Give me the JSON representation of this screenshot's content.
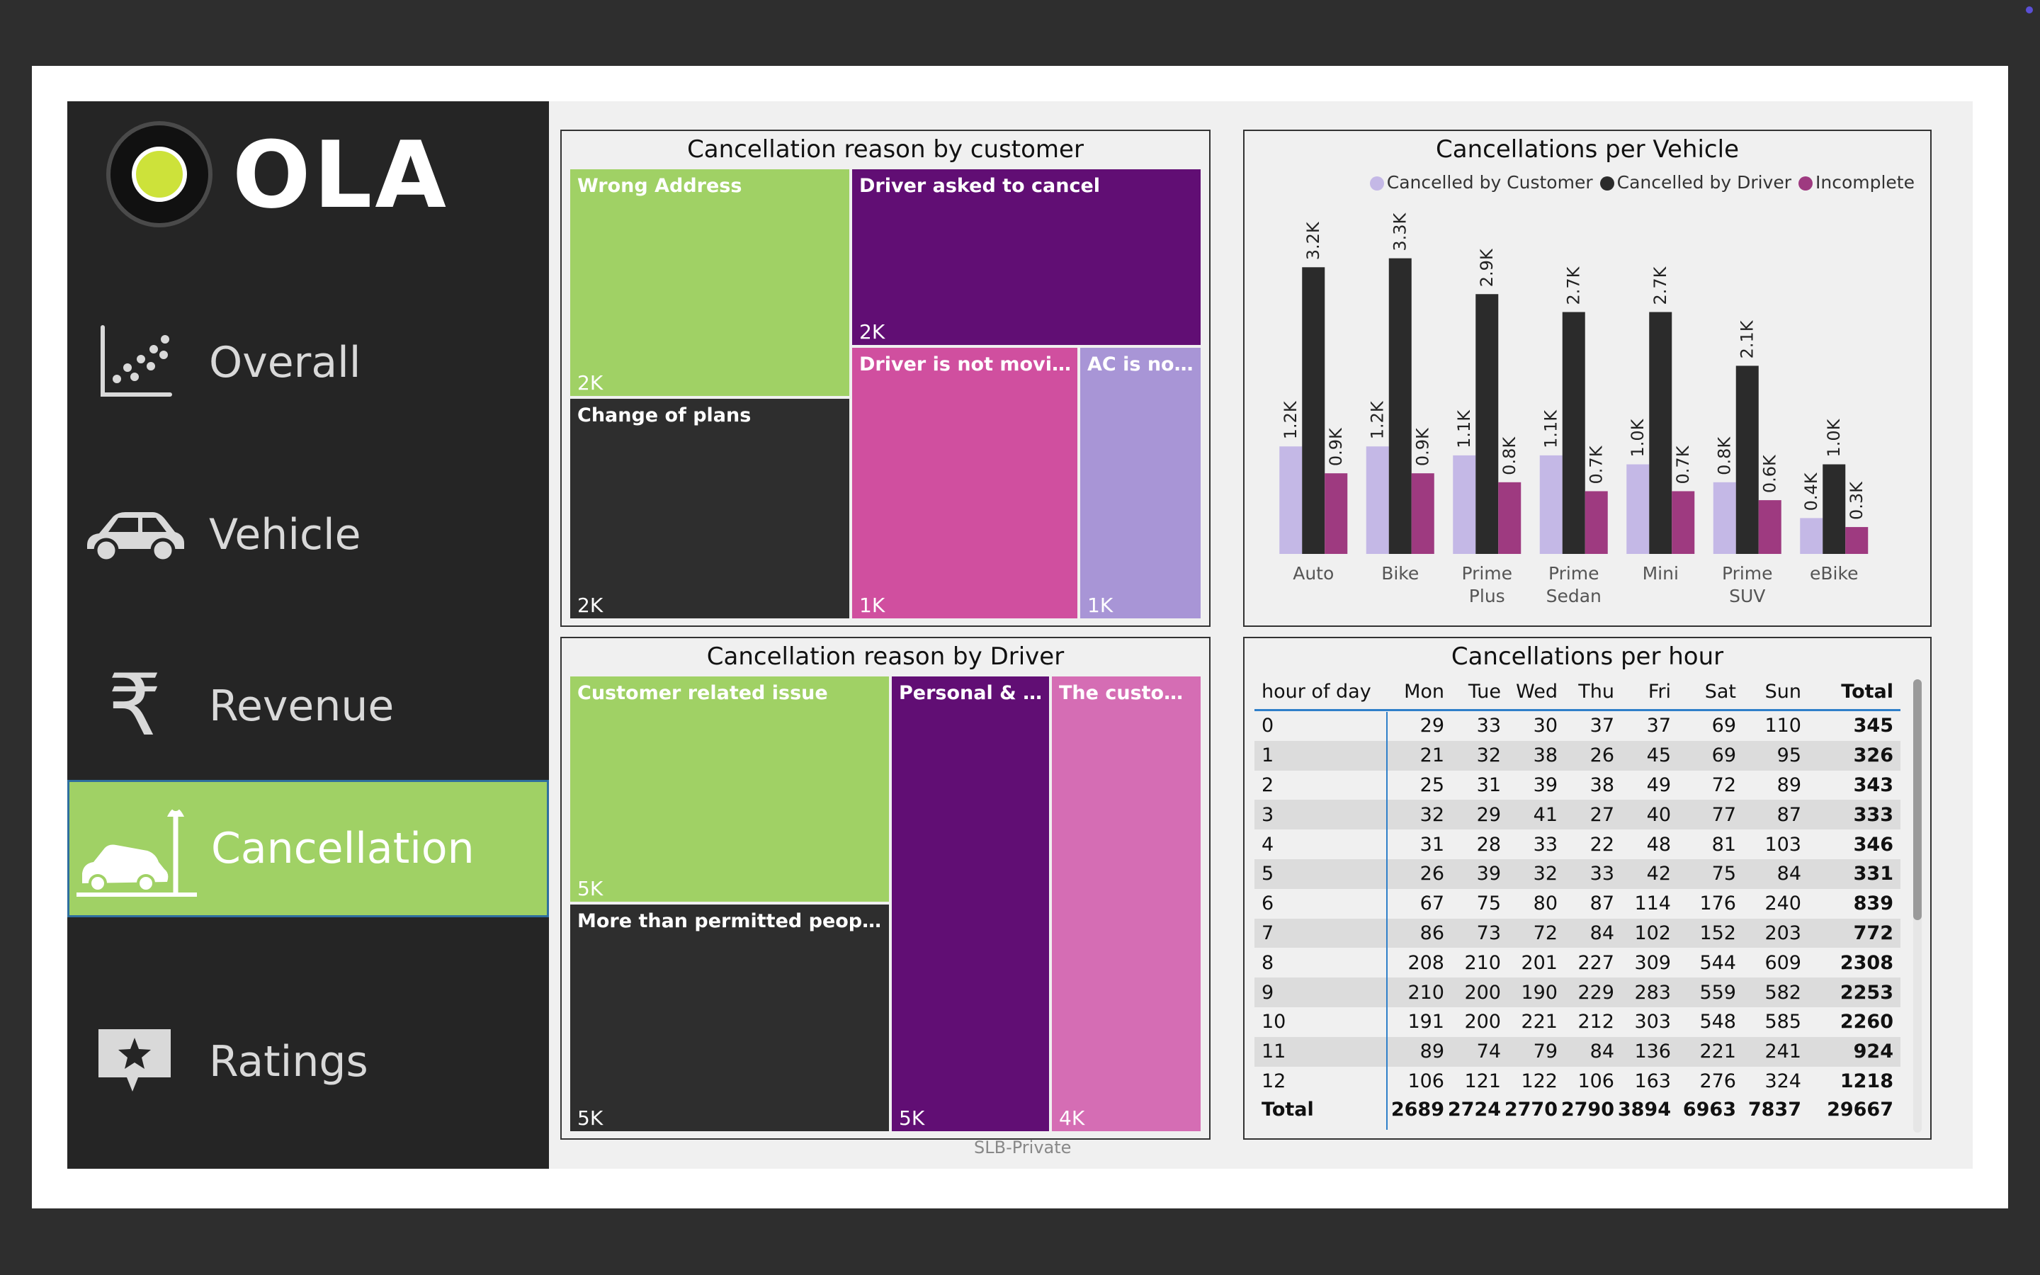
{
  "brand": {
    "name": "OLA"
  },
  "nav": [
    {
      "label": "Overall",
      "icon": "scatter-chart-icon",
      "active": false
    },
    {
      "label": "Vehicle",
      "icon": "car-icon",
      "active": false
    },
    {
      "label": "Revenue",
      "icon": "rupee-icon",
      "active": false
    },
    {
      "label": "Cancellation",
      "icon": "car-crash-icon",
      "active": true
    },
    {
      "label": "Ratings",
      "icon": "star-review-icon",
      "active": false
    }
  ],
  "customer_reasons": {
    "title": "Cancellation reason by customer",
    "items": [
      {
        "label": "Wrong Address",
        "value": "2K",
        "color": "#a0d165"
      },
      {
        "label": "Driver asked to cancel",
        "value": "2K",
        "color": "#610e74"
      },
      {
        "label": "Change of plans",
        "value": "2K",
        "color": "#2e2e2e"
      },
      {
        "label": "Driver is not moving...",
        "value": "1K",
        "color": "#d04f9f"
      },
      {
        "label": "AC is not ...",
        "value": "1K",
        "color": "#a895d6"
      }
    ]
  },
  "driver_reasons": {
    "title": "Cancellation reason by Driver",
    "items": [
      {
        "label": "Customer related issue",
        "value": "5K",
        "color": "#a0d165"
      },
      {
        "label": "More than permitted people i...",
        "value": "5K",
        "color": "#2e2e2e"
      },
      {
        "label": "Personal & C...",
        "value": "5K",
        "color": "#610e74"
      },
      {
        "label": "The custome...",
        "value": "4K",
        "color": "#d56db4"
      }
    ]
  },
  "chart_data": {
    "type": "bar",
    "title": "Cancellations per Vehicle",
    "categories": [
      "Auto",
      "Bike",
      "Prime Plus",
      "Prime Sedan",
      "Mini",
      "Prime SUV",
      "eBike"
    ],
    "series": [
      {
        "name": "Cancelled by Customer",
        "color": "#c4b8e6",
        "values": [
          1.2,
          1.2,
          1.1,
          1.1,
          1.0,
          0.8,
          0.4
        ],
        "labels": [
          "1.2K",
          "1.2K",
          "1.1K",
          "1.1K",
          "1.0K",
          "0.8K",
          "0.4K"
        ]
      },
      {
        "name": "Cancelled by Driver",
        "color": "#2b2b2b",
        "values": [
          3.2,
          3.3,
          2.9,
          2.7,
          2.7,
          2.1,
          1.0
        ],
        "labels": [
          "3.2K",
          "3.3K",
          "2.9K",
          "2.7K",
          "2.7K",
          "2.1K",
          "1.0K"
        ]
      },
      {
        "name": "Incomplete",
        "color": "#9e3a80",
        "values": [
          0.9,
          0.9,
          0.8,
          0.7,
          0.7,
          0.6,
          0.3
        ],
        "labels": [
          "0.9K",
          "0.9K",
          "0.8K",
          "0.7K",
          "0.7K",
          "0.6K",
          "0.3K"
        ]
      }
    ],
    "ylim": [
      0,
      3.4
    ],
    "grid": false,
    "legend": "top-right"
  },
  "hourly": {
    "title": "Cancellations per hour",
    "columns": [
      "hour of day",
      "Mon",
      "Tue",
      "Wed",
      "Thu",
      "Fri",
      "Sat",
      "Sun",
      "Total"
    ],
    "rows": [
      [
        "0",
        "29",
        "33",
        "30",
        "37",
        "37",
        "69",
        "110",
        "345"
      ],
      [
        "1",
        "21",
        "32",
        "38",
        "26",
        "45",
        "69",
        "95",
        "326"
      ],
      [
        "2",
        "25",
        "31",
        "39",
        "38",
        "49",
        "72",
        "89",
        "343"
      ],
      [
        "3",
        "32",
        "29",
        "41",
        "27",
        "40",
        "77",
        "87",
        "333"
      ],
      [
        "4",
        "31",
        "28",
        "33",
        "22",
        "48",
        "81",
        "103",
        "346"
      ],
      [
        "5",
        "26",
        "39",
        "32",
        "33",
        "42",
        "75",
        "84",
        "331"
      ],
      [
        "6",
        "67",
        "75",
        "80",
        "87",
        "114",
        "176",
        "240",
        "839"
      ],
      [
        "7",
        "86",
        "73",
        "72",
        "84",
        "102",
        "152",
        "203",
        "772"
      ],
      [
        "8",
        "208",
        "210",
        "201",
        "227",
        "309",
        "544",
        "609",
        "2308"
      ],
      [
        "9",
        "210",
        "200",
        "190",
        "229",
        "283",
        "559",
        "582",
        "2253"
      ],
      [
        "10",
        "191",
        "200",
        "221",
        "212",
        "303",
        "548",
        "585",
        "2260"
      ],
      [
        "11",
        "89",
        "74",
        "79",
        "84",
        "136",
        "221",
        "241",
        "924"
      ],
      [
        "12",
        "106",
        "121",
        "122",
        "106",
        "163",
        "276",
        "324",
        "1218"
      ]
    ],
    "total": [
      "Total",
      "2689",
      "2724",
      "2770",
      "2790",
      "3894",
      "6963",
      "7837",
      "29667"
    ]
  },
  "footer": "SLB-Private"
}
